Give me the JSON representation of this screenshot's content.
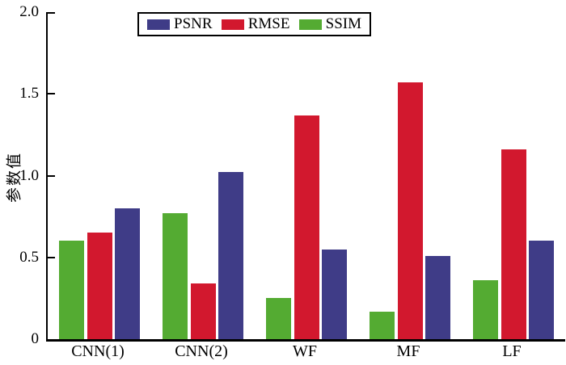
{
  "chart_data": {
    "type": "bar",
    "title": "",
    "xlabel": "",
    "ylabel": "参数值",
    "ylim": [
      0,
      2.0
    ],
    "grid": false,
    "yticks": [
      {
        "value": 2.0,
        "label": "2.0"
      },
      {
        "value": 1.5,
        "label": "1.5"
      },
      {
        "value": 1.0,
        "label": "1.0"
      },
      {
        "value": 0.5,
        "label": "0.5"
      },
      {
        "value": 0,
        "label": "0"
      }
    ],
    "categories": [
      "CNN(1)",
      "CNN(2)",
      "WF",
      "MF",
      "LF"
    ],
    "series": [
      {
        "name": "SSIM",
        "color": "#54ab32",
        "values": [
          0.6,
          0.77,
          0.25,
          0.17,
          0.36
        ]
      },
      {
        "name": "RMSE",
        "color": "#d2182e",
        "values": [
          0.65,
          0.34,
          1.37,
          1.57,
          1.16
        ]
      },
      {
        "name": "PSNR",
        "color": "#3f3c87",
        "values": [
          0.8,
          1.02,
          0.55,
          0.51,
          0.6
        ]
      }
    ],
    "legend": {
      "position": "top",
      "items": [
        {
          "label": "PSNR",
          "color": "#3f3c87"
        },
        {
          "label": "RMSE",
          "color": "#d2182e"
        },
        {
          "label": "SSIM",
          "color": "#54ab32"
        }
      ]
    }
  }
}
